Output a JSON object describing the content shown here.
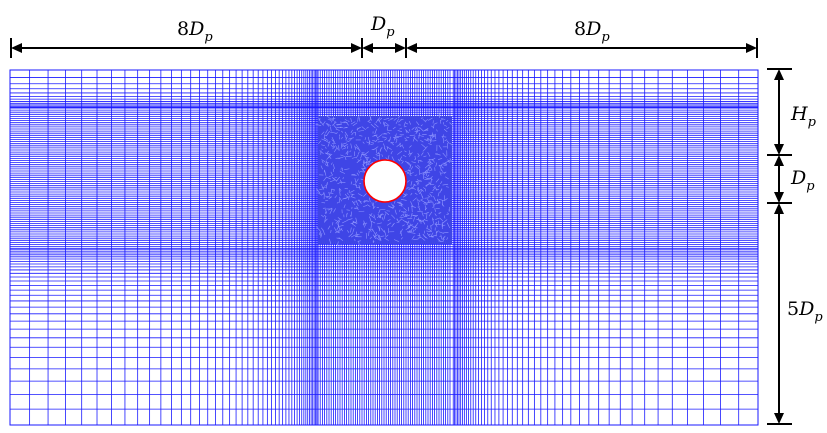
{
  "figure": {
    "mesh_color": "#1a1aff",
    "cylinder_color": "#ff0000",
    "dimension_line_color": "#000000",
    "background": "#ffffff"
  },
  "labels": {
    "left_width": {
      "coef": "8",
      "sym": "D",
      "sub": "p"
    },
    "center_width": {
      "coef": "",
      "sym": "D",
      "sub": "p"
    },
    "right_width": {
      "coef": "8",
      "sym": "D",
      "sub": "p"
    },
    "top_height": {
      "coef": "",
      "sym": "H",
      "sub": "p"
    },
    "mid_height": {
      "coef": "",
      "sym": "D",
      "sub": "p"
    },
    "bottom_height": {
      "coef": "5",
      "sym": "D",
      "sub": "p"
    }
  }
}
